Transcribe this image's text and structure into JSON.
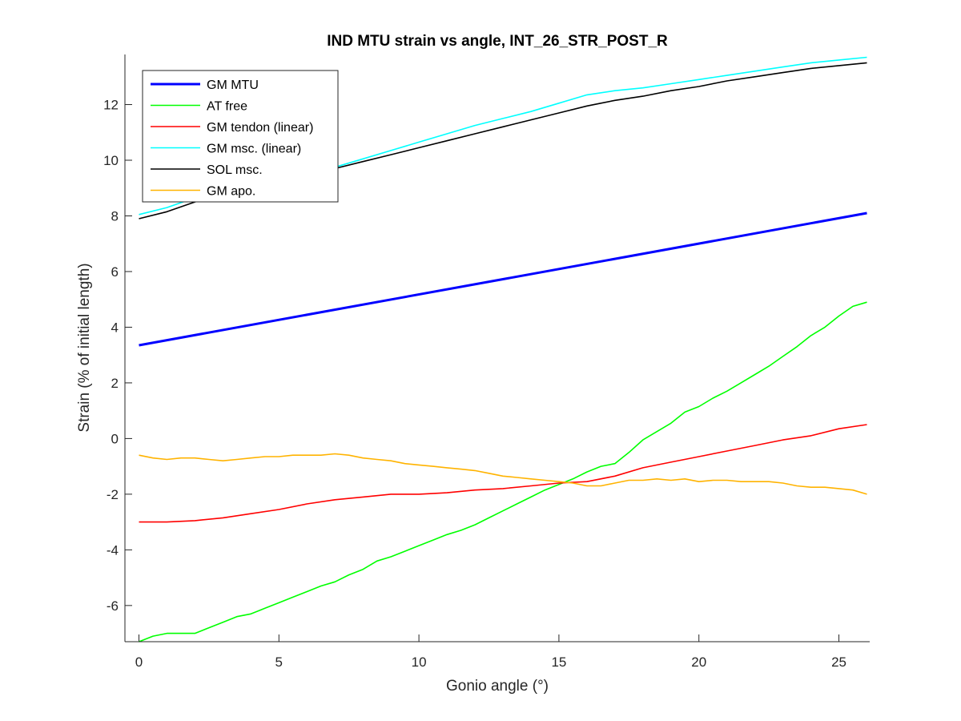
{
  "chart_data": {
    "type": "line",
    "title": "IND MTU strain vs angle, INT_26_STR_POST_R",
    "xlabel": "Gonio angle (°)",
    "ylabel": "Strain (% of initial length)",
    "xlim": [
      -0.5,
      26.1
    ],
    "ylim": [
      -7.3,
      13.8
    ],
    "xticks": [
      0,
      5,
      10,
      15,
      20,
      25
    ],
    "yticks": [
      -6,
      -4,
      -2,
      0,
      2,
      4,
      6,
      8,
      10,
      12
    ],
    "grid": false,
    "legend_position": "top-left",
    "series": [
      {
        "name": "GM MTU",
        "color": "#0000ff",
        "x": [
          0,
          26
        ],
        "y": [
          3.35,
          8.1
        ]
      },
      {
        "name": "AT free",
        "color": "#00ff00",
        "x": [
          0,
          0.5,
          1,
          1.5,
          2,
          2.5,
          3,
          3.5,
          4,
          4.5,
          5,
          5.5,
          6,
          6.5,
          7,
          7.5,
          8,
          8.5,
          9,
          9.5,
          10,
          10.5,
          11,
          11.5,
          12,
          12.5,
          13,
          13.5,
          14,
          14.5,
          15,
          15.5,
          16,
          16.5,
          17,
          17.5,
          18,
          18.5,
          19,
          19.5,
          20,
          20.5,
          21,
          21.5,
          22,
          22.5,
          23,
          23.5,
          24,
          24.5,
          25,
          25.5,
          26
        ],
        "y": [
          -7.3,
          -7.1,
          -7.0,
          -7.0,
          -7.0,
          -6.8,
          -6.6,
          -6.4,
          -6.3,
          -6.1,
          -5.9,
          -5.7,
          -5.5,
          -5.3,
          -5.15,
          -4.9,
          -4.7,
          -4.4,
          -4.25,
          -4.05,
          -3.85,
          -3.65,
          -3.45,
          -3.3,
          -3.1,
          -2.85,
          -2.6,
          -2.35,
          -2.1,
          -1.85,
          -1.65,
          -1.45,
          -1.2,
          -1.0,
          -0.9,
          -0.5,
          -0.05,
          0.25,
          0.55,
          0.95,
          1.15,
          1.45,
          1.7,
          2.0,
          2.3,
          2.6,
          2.95,
          3.3,
          3.7,
          4.0,
          4.4,
          4.75,
          4.9
        ]
      },
      {
        "name": "GM tendon (linear)",
        "color": "#ff0000",
        "x": [
          0,
          1,
          2,
          3,
          4,
          5,
          6,
          7,
          8,
          9,
          10,
          11,
          12,
          13,
          14,
          15,
          16,
          17,
          18,
          19,
          20,
          21,
          22,
          23,
          24,
          25,
          26
        ],
        "y": [
          -3.0,
          -3.0,
          -2.95,
          -2.85,
          -2.7,
          -2.55,
          -2.35,
          -2.2,
          -2.1,
          -2.0,
          -2.0,
          -1.95,
          -1.85,
          -1.8,
          -1.7,
          -1.6,
          -1.55,
          -1.35,
          -1.05,
          -0.85,
          -0.65,
          -0.45,
          -0.25,
          -0.05,
          0.1,
          0.35,
          0.5
        ]
      },
      {
        "name": "GM msc. (linear)",
        "color": "#00ffff",
        "x": [
          0,
          1,
          2,
          3,
          4,
          5,
          6,
          7,
          8,
          9,
          10,
          11,
          12,
          13,
          14,
          15,
          16,
          17,
          18,
          19,
          20,
          21,
          22,
          23,
          24,
          25,
          26
        ],
        "y": [
          8.05,
          8.3,
          8.65,
          8.95,
          9.2,
          9.35,
          9.6,
          9.75,
          10.05,
          10.35,
          10.65,
          10.95,
          11.25,
          11.5,
          11.75,
          12.05,
          12.35,
          12.5,
          12.6,
          12.75,
          12.9,
          13.05,
          13.2,
          13.35,
          13.5,
          13.6,
          13.7
        ]
      },
      {
        "name": "SOL msc.",
        "color": "#000000",
        "x": [
          0,
          1,
          2,
          3,
          4,
          5,
          6,
          7,
          8,
          9,
          10,
          11,
          12,
          13,
          14,
          15,
          16,
          17,
          18,
          19,
          20,
          21,
          22,
          23,
          24,
          25,
          26
        ],
        "y": [
          7.9,
          8.15,
          8.5,
          8.85,
          9.1,
          9.3,
          9.5,
          9.7,
          9.95,
          10.2,
          10.45,
          10.7,
          10.95,
          11.2,
          11.45,
          11.7,
          11.95,
          12.15,
          12.3,
          12.5,
          12.65,
          12.85,
          13.0,
          13.15,
          13.3,
          13.4,
          13.5
        ]
      },
      {
        "name": "GM apo.",
        "color": "#ffb300",
        "x": [
          0,
          0.5,
          1,
          1.5,
          2,
          2.5,
          3,
          3.5,
          4,
          4.5,
          5,
          5.5,
          6,
          6.5,
          7,
          7.5,
          8,
          8.5,
          9,
          9.5,
          10,
          10.5,
          11,
          11.5,
          12,
          12.5,
          13,
          13.5,
          14,
          14.5,
          15,
          15.5,
          16,
          16.5,
          17,
          17.5,
          18,
          18.5,
          19,
          19.5,
          20,
          20.5,
          21,
          21.5,
          22,
          22.5,
          23,
          23.5,
          24,
          24.5,
          25,
          25.5,
          26
        ],
        "y": [
          -0.6,
          -0.7,
          -0.75,
          -0.7,
          -0.7,
          -0.75,
          -0.8,
          -0.75,
          -0.7,
          -0.65,
          -0.65,
          -0.6,
          -0.6,
          -0.6,
          -0.55,
          -0.6,
          -0.7,
          -0.75,
          -0.8,
          -0.9,
          -0.95,
          -1.0,
          -1.05,
          -1.1,
          -1.15,
          -1.25,
          -1.35,
          -1.4,
          -1.45,
          -1.5,
          -1.55,
          -1.6,
          -1.7,
          -1.7,
          -1.6,
          -1.5,
          -1.5,
          -1.45,
          -1.5,
          -1.45,
          -1.55,
          -1.5,
          -1.5,
          -1.55,
          -1.55,
          -1.55,
          -1.6,
          -1.7,
          -1.75,
          -1.75,
          -1.8,
          -1.85,
          -2.0
        ]
      }
    ]
  }
}
